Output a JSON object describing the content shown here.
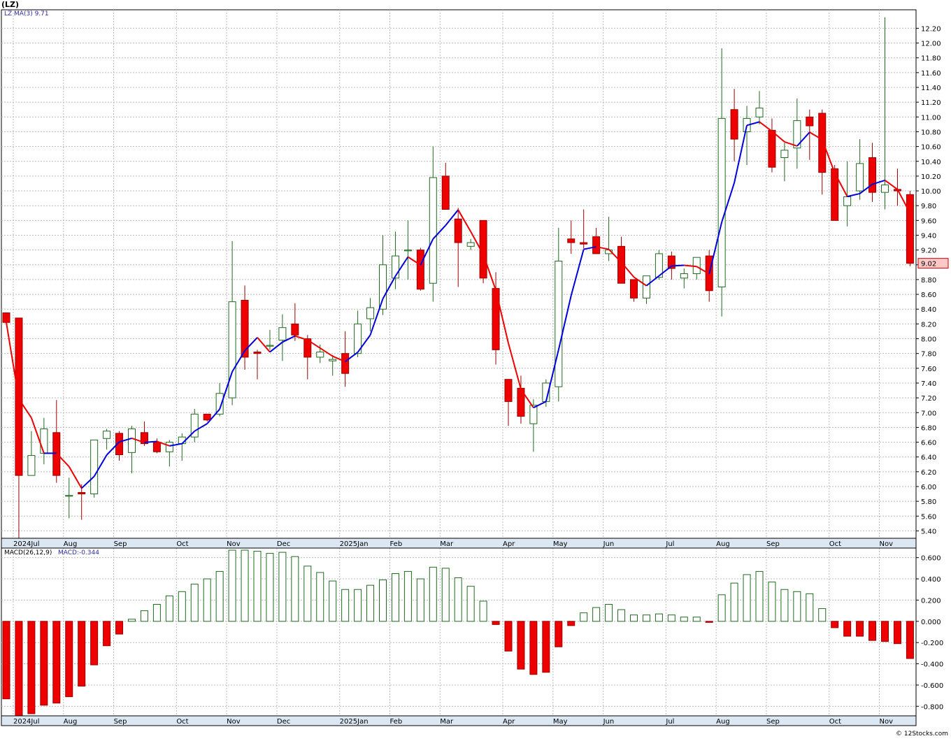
{
  "header": {
    "title": "(LZ)",
    "ma_label": "LZ  MA(3)  9.71",
    "macd_label": "MACD(26,12,9)",
    "macd_value_label": "MACD:-0.344",
    "credit": "© 12Stocks.com"
  },
  "colors": {
    "up": "#ffffff",
    "upStroke": "#1f6b1f",
    "down": "#ee0000",
    "downStroke": "#990000",
    "maUp": "#0000dd",
    "maDown": "#ee0000",
    "grid": "#bbbbbb",
    "axisBar": "#dbe7f3"
  },
  "chart_data": [
    {
      "type": "candlestick",
      "title": "(LZ)",
      "ylim": [
        5.3,
        12.45
      ],
      "yticks": [
        "5.40",
        "5.60",
        "5.80",
        "6.00",
        "6.20",
        "6.40",
        "6.60",
        "6.80",
        "7.00",
        "7.20",
        "7.40",
        "7.60",
        "7.80",
        "8.00",
        "8.20",
        "8.40",
        "8.60",
        "8.80",
        "9.00",
        "9.20",
        "9.40",
        "9.60",
        "9.80",
        "10.00",
        "10.20",
        "10.40",
        "10.60",
        "10.80",
        "11.00",
        "11.20",
        "11.40",
        "11.60",
        "11.80",
        "12.00",
        "12.20"
      ],
      "last_price": "9.02",
      "x_labels": [
        {
          "i": 1,
          "text": "2024Jul"
        },
        {
          "i": 5,
          "text": "Aug"
        },
        {
          "i": 9,
          "text": "Sep"
        },
        {
          "i": 14,
          "text": "Oct"
        },
        {
          "i": 18,
          "text": "Nov"
        },
        {
          "i": 22,
          "text": "Dec"
        },
        {
          "i": 27,
          "text": "2025Jan"
        },
        {
          "i": 31,
          "text": "Feb"
        },
        {
          "i": 35,
          "text": "Mar"
        },
        {
          "i": 40,
          "text": "Apr"
        },
        {
          "i": 44,
          "text": "May"
        },
        {
          "i": 48,
          "text": "Jun"
        },
        {
          "i": 53,
          "text": "Jul"
        },
        {
          "i": 57,
          "text": "Aug"
        },
        {
          "i": 61,
          "text": "Sep"
        },
        {
          "i": 66,
          "text": "Oct"
        },
        {
          "i": 70,
          "text": "Nov"
        }
      ],
      "candles": [
        {
          "o": 8.35,
          "h": 8.35,
          "l": 8.2,
          "c": 8.22
        },
        {
          "o": 8.28,
          "h": 8.28,
          "l": 5.3,
          "c": 6.15
        },
        {
          "o": 6.15,
          "h": 6.75,
          "l": 6.15,
          "c": 6.42
        },
        {
          "o": 6.45,
          "h": 6.93,
          "l": 6.3,
          "c": 6.78
        },
        {
          "o": 6.73,
          "h": 7.17,
          "l": 6.05,
          "c": 6.15
        },
        {
          "o": 5.88,
          "h": 6.12,
          "l": 5.57,
          "c": 5.88
        },
        {
          "o": 5.92,
          "h": 6.03,
          "l": 5.55,
          "c": 5.9
        },
        {
          "o": 5.9,
          "h": 6.63,
          "l": 5.85,
          "c": 6.63
        },
        {
          "o": 6.65,
          "h": 6.78,
          "l": 6.5,
          "c": 6.75
        },
        {
          "o": 6.72,
          "h": 6.75,
          "l": 6.35,
          "c": 6.43
        },
        {
          "o": 6.46,
          "h": 6.82,
          "l": 6.18,
          "c": 6.78
        },
        {
          "o": 6.73,
          "h": 6.88,
          "l": 6.55,
          "c": 6.58
        },
        {
          "o": 6.6,
          "h": 6.65,
          "l": 6.45,
          "c": 6.47
        },
        {
          "o": 6.47,
          "h": 6.63,
          "l": 6.27,
          "c": 6.6
        },
        {
          "o": 6.58,
          "h": 6.72,
          "l": 6.35,
          "c": 6.67
        },
        {
          "o": 6.67,
          "h": 7.05,
          "l": 6.6,
          "c": 6.98
        },
        {
          "o": 6.98,
          "h": 6.98,
          "l": 6.88,
          "c": 6.9
        },
        {
          "o": 6.98,
          "h": 7.4,
          "l": 6.95,
          "c": 7.26
        },
        {
          "o": 7.2,
          "h": 9.32,
          "l": 7.1,
          "c": 8.5
        },
        {
          "o": 8.52,
          "h": 8.72,
          "l": 7.58,
          "c": 7.75
        },
        {
          "o": 7.82,
          "h": 7.85,
          "l": 7.45,
          "c": 7.8
        },
        {
          "o": 7.9,
          "h": 8.12,
          "l": 7.85,
          "c": 7.91
        },
        {
          "o": 7.98,
          "h": 8.33,
          "l": 7.7,
          "c": 8.15
        },
        {
          "o": 8.2,
          "h": 8.48,
          "l": 7.97,
          "c": 8.05
        },
        {
          "o": 8.0,
          "h": 8.05,
          "l": 7.45,
          "c": 7.75
        },
        {
          "o": 7.75,
          "h": 7.92,
          "l": 7.67,
          "c": 7.82
        },
        {
          "o": 7.7,
          "h": 7.78,
          "l": 7.5,
          "c": 7.72
        },
        {
          "o": 7.8,
          "h": 8.1,
          "l": 7.35,
          "c": 7.53
        },
        {
          "o": 7.8,
          "h": 8.38,
          "l": 7.75,
          "c": 8.2
        },
        {
          "o": 8.27,
          "h": 8.55,
          "l": 8.1,
          "c": 8.42
        },
        {
          "o": 8.4,
          "h": 9.4,
          "l": 8.32,
          "c": 9.0
        },
        {
          "o": 8.82,
          "h": 9.45,
          "l": 8.67,
          "c": 9.12
        },
        {
          "o": 9.2,
          "h": 9.6,
          "l": 8.8,
          "c": 9.2
        },
        {
          "o": 9.2,
          "h": 9.23,
          "l": 8.65,
          "c": 8.67
        },
        {
          "o": 8.75,
          "h": 10.6,
          "l": 8.5,
          "c": 10.18
        },
        {
          "o": 10.2,
          "h": 10.38,
          "l": 9.75,
          "c": 9.75
        },
        {
          "o": 9.62,
          "h": 9.77,
          "l": 8.7,
          "c": 9.3
        },
        {
          "o": 9.25,
          "h": 9.35,
          "l": 9.2,
          "c": 9.3
        },
        {
          "o": 9.6,
          "h": 9.6,
          "l": 8.75,
          "c": 8.82
        },
        {
          "o": 8.68,
          "h": 8.9,
          "l": 7.65,
          "c": 7.85
        },
        {
          "o": 7.45,
          "h": 7.45,
          "l": 6.82,
          "c": 7.15
        },
        {
          "o": 7.33,
          "h": 7.5,
          "l": 6.85,
          "c": 6.95
        },
        {
          "o": 6.85,
          "h": 7.18,
          "l": 6.47,
          "c": 7.1
        },
        {
          "o": 7.15,
          "h": 7.45,
          "l": 7.08,
          "c": 7.4
        },
        {
          "o": 7.35,
          "h": 9.5,
          "l": 7.15,
          "c": 9.05
        },
        {
          "o": 9.35,
          "h": 9.6,
          "l": 9.15,
          "c": 9.3
        },
        {
          "o": 9.3,
          "h": 9.75,
          "l": 9.22,
          "c": 9.28
        },
        {
          "o": 9.38,
          "h": 9.5,
          "l": 9.15,
          "c": 9.15
        },
        {
          "o": 9.15,
          "h": 9.65,
          "l": 9.05,
          "c": 9.2
        },
        {
          "o": 9.25,
          "h": 9.38,
          "l": 8.75,
          "c": 8.75
        },
        {
          "o": 8.8,
          "h": 8.8,
          "l": 8.5,
          "c": 8.55
        },
        {
          "o": 8.55,
          "h": 8.85,
          "l": 8.47,
          "c": 8.85
        },
        {
          "o": 8.83,
          "h": 9.2,
          "l": 8.8,
          "c": 9.15
        },
        {
          "o": 9.12,
          "h": 9.18,
          "l": 8.8,
          "c": 8.95
        },
        {
          "o": 8.82,
          "h": 8.95,
          "l": 8.68,
          "c": 8.88
        },
        {
          "o": 8.88,
          "h": 9.1,
          "l": 8.8,
          "c": 9.1
        },
        {
          "o": 9.12,
          "h": 9.2,
          "l": 8.5,
          "c": 8.65
        },
        {
          "o": 8.7,
          "h": 11.93,
          "l": 8.3,
          "c": 10.98
        },
        {
          "o": 11.1,
          "h": 11.38,
          "l": 10.4,
          "c": 10.7
        },
        {
          "o": 10.8,
          "h": 11.15,
          "l": 10.35,
          "c": 10.98
        },
        {
          "o": 11.0,
          "h": 11.35,
          "l": 10.9,
          "c": 11.12
        },
        {
          "o": 10.82,
          "h": 10.98,
          "l": 10.25,
          "c": 10.32
        },
        {
          "o": 10.45,
          "h": 10.65,
          "l": 10.13,
          "c": 10.55
        },
        {
          "o": 10.58,
          "h": 11.25,
          "l": 10.3,
          "c": 10.95
        },
        {
          "o": 11.0,
          "h": 11.1,
          "l": 10.42,
          "c": 10.88
        },
        {
          "o": 11.05,
          "h": 11.1,
          "l": 9.95,
          "c": 10.25
        },
        {
          "o": 10.3,
          "h": 10.35,
          "l": 9.6,
          "c": 9.6
        },
        {
          "o": 9.8,
          "h": 10.4,
          "l": 9.52,
          "c": 9.92
        },
        {
          "o": 10.0,
          "h": 10.7,
          "l": 9.88,
          "c": 10.37
        },
        {
          "o": 10.45,
          "h": 10.65,
          "l": 9.85,
          "c": 9.98
        },
        {
          "o": 9.98,
          "h": 12.35,
          "l": 9.75,
          "c": 10.08
        },
        {
          "o": 10.02,
          "h": 10.3,
          "l": 9.8,
          "c": 10.0
        },
        {
          "o": 9.95,
          "h": 10.0,
          "l": 8.98,
          "c": 9.02
        }
      ]
    },
    {
      "type": "bar",
      "title": "MACD(26,12,9)",
      "ylim": [
        -0.89,
        0.69
      ],
      "yticks": [
        "-0.800",
        "-0.600",
        "-0.400",
        "-0.200",
        "0.000",
        "0.200",
        "0.400",
        "0.600"
      ],
      "values": [
        -0.73,
        -0.89,
        -0.87,
        -0.79,
        -0.77,
        -0.71,
        -0.61,
        -0.41,
        -0.23,
        -0.12,
        0.02,
        0.1,
        0.16,
        0.24,
        0.28,
        0.35,
        0.4,
        0.47,
        0.67,
        0.67,
        0.66,
        0.64,
        0.65,
        0.61,
        0.52,
        0.46,
        0.38,
        0.3,
        0.3,
        0.34,
        0.39,
        0.45,
        0.47,
        0.4,
        0.51,
        0.5,
        0.41,
        0.33,
        0.19,
        -0.03,
        -0.28,
        -0.45,
        -0.5,
        -0.48,
        -0.24,
        -0.04,
        0.08,
        0.13,
        0.16,
        0.11,
        0.06,
        0.06,
        0.07,
        0.06,
        0.04,
        0.04,
        -0.01,
        0.25,
        0.36,
        0.44,
        0.47,
        0.37,
        0.3,
        0.28,
        0.26,
        0.12,
        -0.06,
        -0.14,
        -0.14,
        -0.18,
        -0.19,
        -0.21,
        -0.35
      ]
    }
  ]
}
